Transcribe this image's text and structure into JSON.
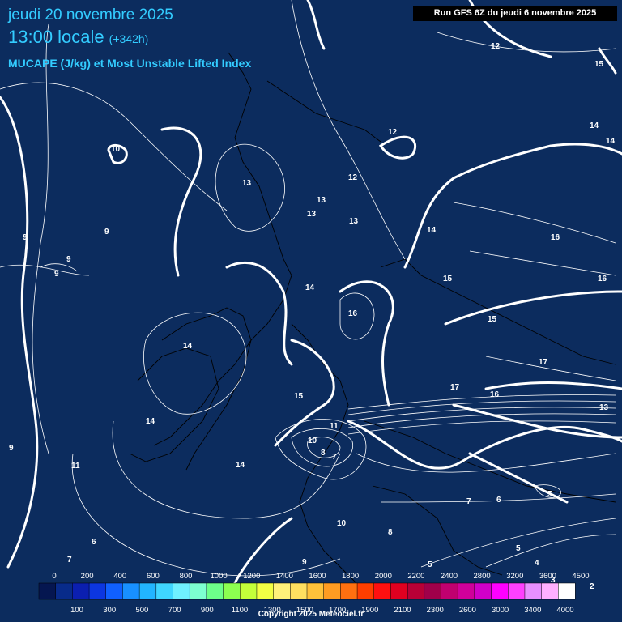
{
  "header": {
    "date": "jeudi 20 novembre 2025",
    "time": "13:00 locale",
    "offset": "(+342h)",
    "parameter": "MUCAPE (J/kg) et Most Unstable Lifted Index",
    "run": "Run GFS 6Z du jeudi 6 novembre 2025"
  },
  "map_labels": [
    "12",
    "15",
    "14",
    "14",
    "10",
    "12",
    "13",
    "12",
    "13",
    "13",
    "13",
    "9",
    "9",
    "9",
    "9",
    "14",
    "16",
    "15",
    "16",
    "14",
    "14",
    "16",
    "15",
    "17",
    "17",
    "16",
    "15",
    "13",
    "14",
    "11",
    "10",
    "8",
    "7",
    "9",
    "11",
    "14",
    "7",
    "6",
    "5",
    "5",
    "10",
    "8",
    "7",
    "9",
    "6",
    "5",
    "4",
    "3",
    "2"
  ],
  "scale": {
    "colors": [
      "#051650",
      "#082b8a",
      "#0b1fb0",
      "#0c36e0",
      "#1060ff",
      "#1890ff",
      "#22b5ff",
      "#3fd6ff",
      "#6ff0ff",
      "#7dffd0",
      "#6dff8a",
      "#8cff50",
      "#c3ff3a",
      "#f2ff44",
      "#fff17a",
      "#ffe060",
      "#ffc23a",
      "#ff9c22",
      "#ff7010",
      "#ff3e00",
      "#ff1010",
      "#e00020",
      "#b80036",
      "#a0004a",
      "#c0006f",
      "#d0009a",
      "#d000c8",
      "#ff00ff",
      "#ff40ff",
      "#e890ff",
      "#ffb0ff",
      "#ffffff"
    ],
    "top_labels": [
      "0",
      "200",
      "400",
      "600",
      "800",
      "1000",
      "1200",
      "1400",
      "1600",
      "1800",
      "2000",
      "2200",
      "2400",
      "2800",
      "3200",
      "3600",
      "4500"
    ],
    "bottom_labels": [
      "100",
      "300",
      "500",
      "700",
      "900",
      "1100",
      "1300",
      "1500",
      "1700",
      "1900",
      "2100",
      "2300",
      "2600",
      "3000",
      "3400",
      "4000"
    ]
  },
  "footer": {
    "copyright": "Copyright 2025 Meteociel.fr"
  }
}
